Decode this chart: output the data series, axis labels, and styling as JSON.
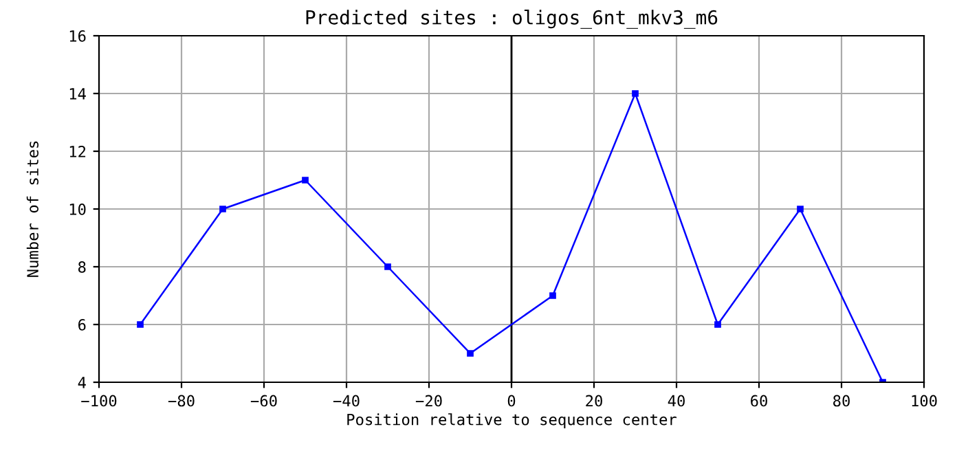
{
  "chart_data": {
    "type": "line",
    "title": "Predicted sites : oligos_6nt_mkv3_m6",
    "xlabel": "Position relative to sequence center",
    "ylabel": "Number of sites",
    "x": [
      -90,
      -70,
      -50,
      -30,
      -10,
      10,
      30,
      50,
      70,
      90
    ],
    "series": [
      {
        "color": "#0000ff",
        "values": [
          6,
          10,
          11,
          8,
          5,
          7,
          14,
          6,
          10,
          4
        ]
      }
    ],
    "xlim": [
      -100,
      100
    ],
    "xticks": [
      {
        "value": -100,
        "label": "−100"
      },
      {
        "value": -80,
        "label": "−80"
      },
      {
        "value": -60,
        "label": "−60"
      },
      {
        "value": -40,
        "label": "−40"
      },
      {
        "value": -20,
        "label": "−20"
      },
      0,
      20,
      40,
      60,
      80,
      100
    ],
    "ylim": [
      4,
      16
    ],
    "yticks": [
      4,
      6,
      8,
      10,
      12,
      14,
      16
    ],
    "ref_lines": [
      {
        "axis": "x",
        "value": 0,
        "color": "#000000"
      }
    ],
    "grid": true,
    "marker": "square",
    "line_style": "solid",
    "legend": false
  }
}
